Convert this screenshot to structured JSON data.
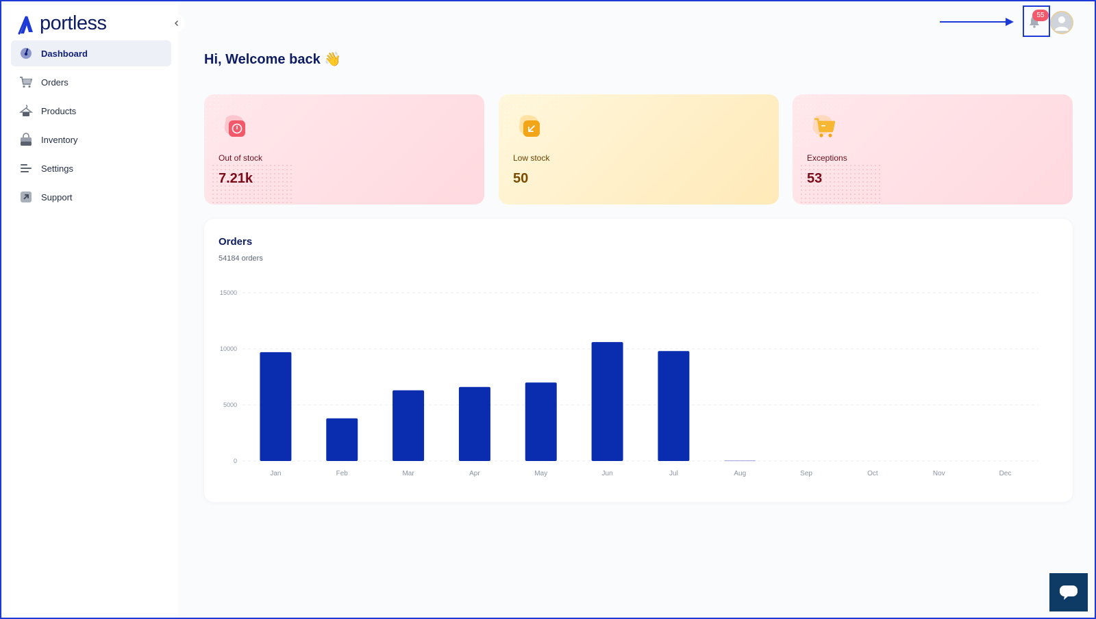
{
  "brand": {
    "name": "portless",
    "color": "#0e1d63"
  },
  "sidebar": {
    "items": [
      {
        "label": "Dashboard",
        "icon": "dashboard-gauge-icon",
        "active": true
      },
      {
        "label": "Orders",
        "icon": "cart-icon",
        "active": false
      },
      {
        "label": "Products",
        "icon": "hanger-icon",
        "active": false
      },
      {
        "label": "Inventory",
        "icon": "bag-icon",
        "active": false
      },
      {
        "label": "Settings",
        "icon": "sliders-icon",
        "active": false
      },
      {
        "label": "Support",
        "icon": "arrow-up-right-icon",
        "active": false
      }
    ]
  },
  "header": {
    "notifications_count": "55",
    "greeting": "Hi, Welcome back 👋"
  },
  "stats": [
    {
      "label": "Out of stock",
      "value": "7.21k",
      "icon": "stopwatch-icon",
      "color": "#f25a6c"
    },
    {
      "label": "Low stock",
      "value": "50",
      "icon": "arrow-down-left-icon",
      "color": "#f2a516"
    },
    {
      "label": "Exceptions",
      "value": "53",
      "icon": "shopping-cart-icon",
      "color": "#f7b733"
    }
  ],
  "orders_panel": {
    "title": "Orders",
    "subtitle": "54184 orders"
  },
  "chart_data": {
    "type": "bar",
    "title": "Orders",
    "categories": [
      "Jan",
      "Feb",
      "Mar",
      "Apr",
      "May",
      "Jun",
      "Jul",
      "Aug",
      "Sep",
      "Oct",
      "Nov",
      "Dec"
    ],
    "values": [
      9700,
      3800,
      6300,
      6600,
      7000,
      10600,
      9800,
      50,
      0,
      0,
      0,
      0
    ],
    "yticks": [
      "0",
      "5000",
      "10000",
      "15000"
    ],
    "ylim": [
      0,
      15000
    ],
    "grid": true,
    "bar_color": "#0a2db0",
    "xlabel": "",
    "ylabel": ""
  },
  "colors": {
    "accent": "#0a2db0",
    "badge": "#f25a6c",
    "highlight": "#1d3ad6",
    "chat": "#0e3a66"
  }
}
